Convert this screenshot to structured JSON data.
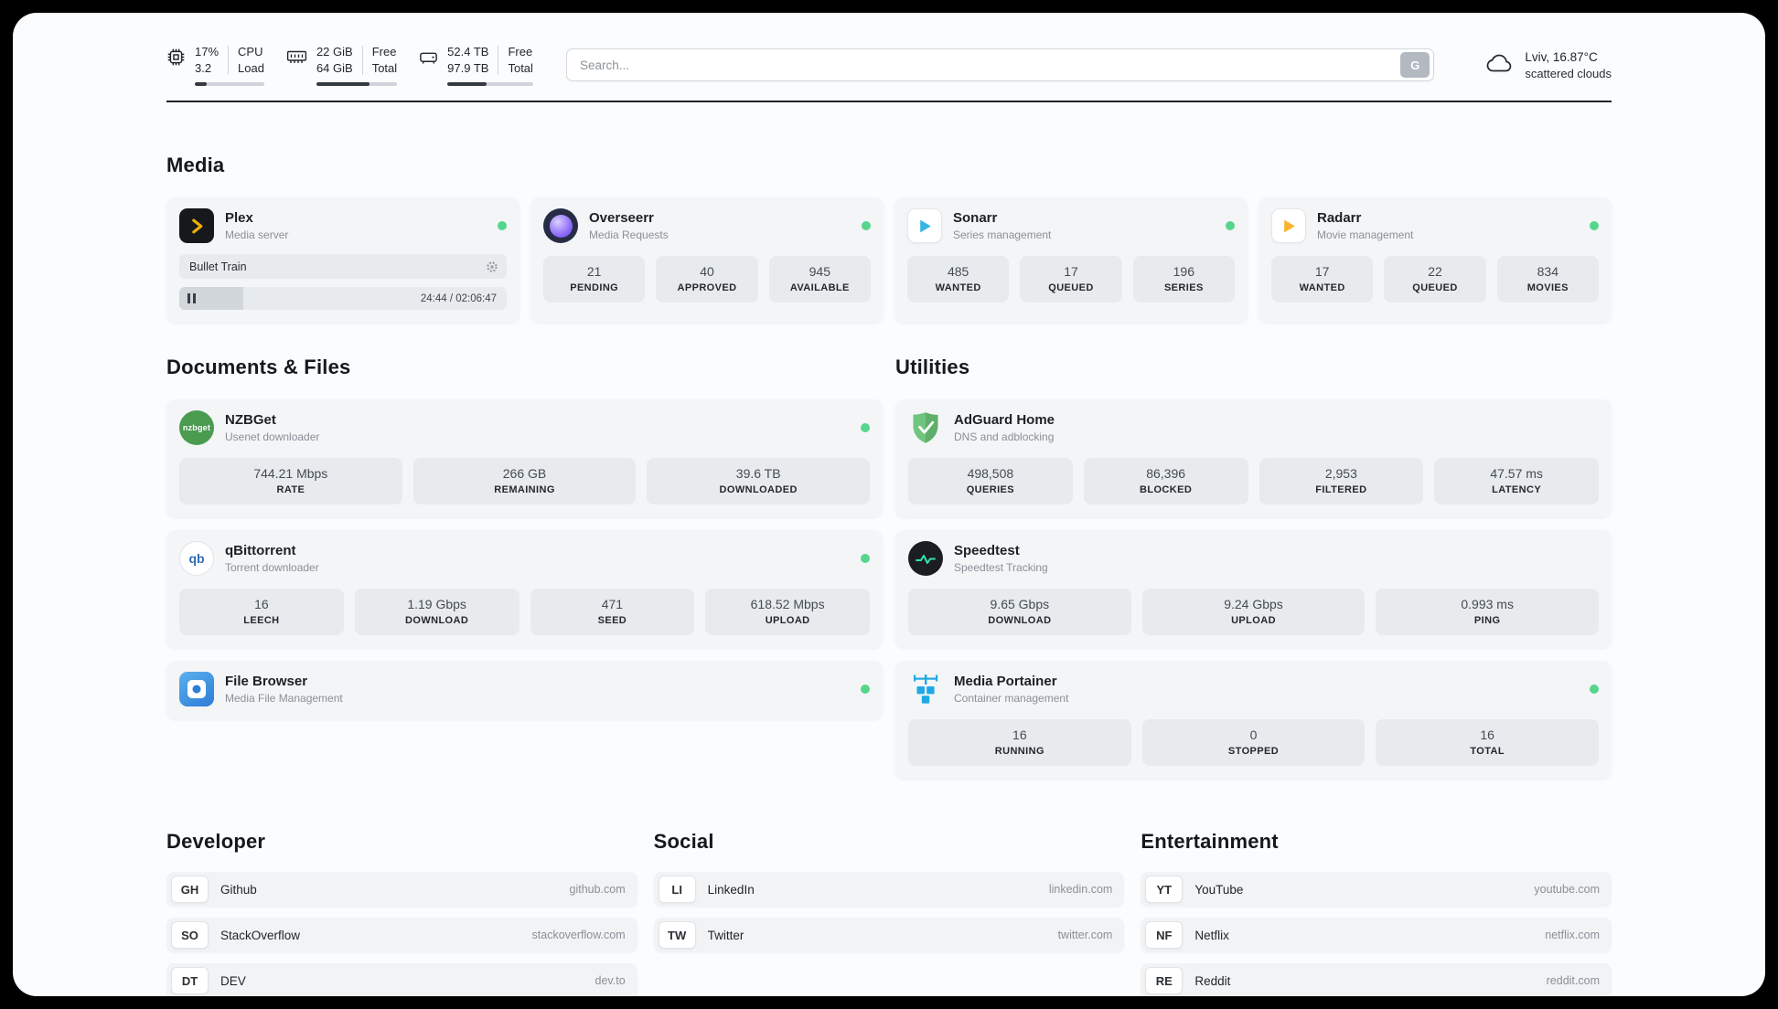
{
  "colors": {
    "status_online": "#56d68c",
    "card_background": "#f3f5f7",
    "stat_background": "#e8ebee",
    "plex_accent": "#ebaf00",
    "sonarr_accent": "#35b6e4",
    "radarr_accent": "#f9b32f",
    "adguard_accent": "#5fae6b",
    "portainer_accent": "#1fa9e4"
  },
  "topbar": {
    "cpu": {
      "value_top": "17%",
      "value_bottom": "3.2",
      "label_top": "CPU",
      "label_bottom": "Load",
      "progress_percent": 17
    },
    "ram": {
      "value_top": "22 GiB",
      "value_bottom": "64 GiB",
      "label_top": "Free",
      "label_bottom": "Total",
      "progress_percent": 66
    },
    "disk": {
      "value_top": "52.4 TB",
      "value_bottom": "97.9 TB",
      "label_top": "Free",
      "label_bottom": "Total",
      "progress_percent": 46
    },
    "search": {
      "placeholder": "Search...",
      "button_label": "G"
    },
    "weather": {
      "location": "Lviv, 16.87°C",
      "condition": "scattered clouds"
    }
  },
  "sections": {
    "media": {
      "title": "Media",
      "apps": [
        {
          "name": "Plex",
          "subtitle": "Media server",
          "online": true,
          "player": {
            "title": "Bullet Train",
            "time": "24:44 / 02:06:47",
            "progress_percent": 19.5
          }
        },
        {
          "name": "Overseerr",
          "subtitle": "Media Requests",
          "online": true,
          "stats": [
            {
              "value": "21",
              "label": "PENDING"
            },
            {
              "value": "40",
              "label": "APPROVED"
            },
            {
              "value": "945",
              "label": "AVAILABLE"
            }
          ]
        },
        {
          "name": "Sonarr",
          "subtitle": "Series management",
          "online": true,
          "stats": [
            {
              "value": "485",
              "label": "WANTED"
            },
            {
              "value": "17",
              "label": "QUEUED"
            },
            {
              "value": "196",
              "label": "SERIES"
            }
          ]
        },
        {
          "name": "Radarr",
          "subtitle": "Movie management",
          "online": true,
          "stats": [
            {
              "value": "17",
              "label": "WANTED"
            },
            {
              "value": "22",
              "label": "QUEUED"
            },
            {
              "value": "834",
              "label": "MOVIES"
            }
          ]
        }
      ]
    },
    "documents": {
      "title": "Documents & Files",
      "apps": [
        {
          "name": "NZBGet",
          "subtitle": "Usenet downloader",
          "online": true,
          "icon_text": "nzbget",
          "stats": [
            {
              "value": "744.21 Mbps",
              "label": "RATE"
            },
            {
              "value": "266 GB",
              "label": "REMAINING"
            },
            {
              "value": "39.6 TB",
              "label": "DOWNLOADED"
            }
          ]
        },
        {
          "name": "qBittorrent",
          "subtitle": "Torrent downloader",
          "online": true,
          "icon_text": "qb",
          "stats": [
            {
              "value": "16",
              "label": "LEECH"
            },
            {
              "value": "1.19 Gbps",
              "label": "DOWNLOAD"
            },
            {
              "value": "471",
              "label": "SEED"
            },
            {
              "value": "618.52 Mbps",
              "label": "UPLOAD"
            }
          ]
        },
        {
          "name": "File Browser",
          "subtitle": "Media File Management",
          "online": true
        }
      ]
    },
    "utilities": {
      "title": "Utilities",
      "apps": [
        {
          "name": "AdGuard Home",
          "subtitle": "DNS and adblocking",
          "online": false,
          "stats": [
            {
              "value": "498,508",
              "label": "QUERIES"
            },
            {
              "value": "86,396",
              "label": "BLOCKED"
            },
            {
              "value": "2,953",
              "label": "FILTERED"
            },
            {
              "value": "47.57 ms",
              "label": "LATENCY"
            }
          ]
        },
        {
          "name": "Speedtest",
          "subtitle": "Speedtest Tracking",
          "online": false,
          "stats": [
            {
              "value": "9.65 Gbps",
              "label": "DOWNLOAD"
            },
            {
              "value": "9.24 Gbps",
              "label": "UPLOAD"
            },
            {
              "value": "0.993 ms",
              "label": "PING"
            }
          ]
        },
        {
          "name": "Media Portainer",
          "subtitle": "Container management",
          "online": true,
          "stats": [
            {
              "value": "16",
              "label": "RUNNING"
            },
            {
              "value": "0",
              "label": "STOPPED"
            },
            {
              "value": "16",
              "label": "TOTAL"
            }
          ]
        }
      ]
    }
  },
  "link_groups": [
    {
      "title": "Developer",
      "items": [
        {
          "badge": "GH",
          "name": "Github",
          "url": "github.com"
        },
        {
          "badge": "SO",
          "name": "StackOverflow",
          "url": "stackoverflow.com"
        },
        {
          "badge": "DT",
          "name": "DEV",
          "url": "dev.to"
        }
      ]
    },
    {
      "title": "Social",
      "items": [
        {
          "badge": "LI",
          "name": "LinkedIn",
          "url": "linkedin.com"
        },
        {
          "badge": "TW",
          "name": "Twitter",
          "url": "twitter.com"
        }
      ]
    },
    {
      "title": "Entertainment",
      "items": [
        {
          "badge": "YT",
          "name": "YouTube",
          "url": "youtube.com"
        },
        {
          "badge": "NF",
          "name": "Netflix",
          "url": "netflix.com"
        },
        {
          "badge": "RE",
          "name": "Reddit",
          "url": "reddit.com"
        }
      ]
    }
  ]
}
